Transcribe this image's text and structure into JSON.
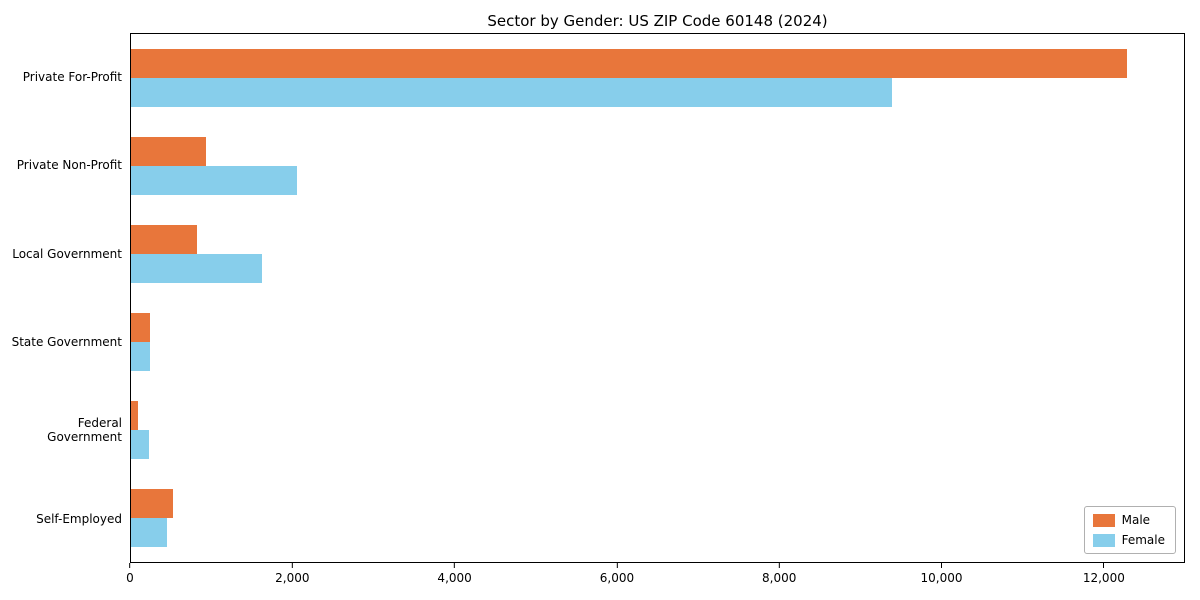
{
  "chart_data": {
    "type": "bar",
    "orientation": "horizontal",
    "title": "Sector by Gender: US ZIP Code 60148 (2024)",
    "categories": [
      "Private For-Profit",
      "Private Non-Profit",
      "Local Government",
      "State Government",
      "Federal Government",
      "Self-Employed"
    ],
    "series": [
      {
        "name": "Male",
        "color": "#e8763b",
        "values": [
          12300,
          920,
          810,
          230,
          90,
          520
        ]
      },
      {
        "name": "Female",
        "color": "#87ceeb",
        "values": [
          9400,
          2050,
          1620,
          230,
          220,
          450
        ]
      }
    ],
    "xlabel": "",
    "ylabel": "",
    "xlim": [
      0,
      13000
    ],
    "xticks": [
      0,
      2000,
      4000,
      6000,
      8000,
      10000,
      12000
    ],
    "legend_position": "lower right",
    "grid": false,
    "background_color": "#ffffff",
    "axis_color": "#000000"
  }
}
